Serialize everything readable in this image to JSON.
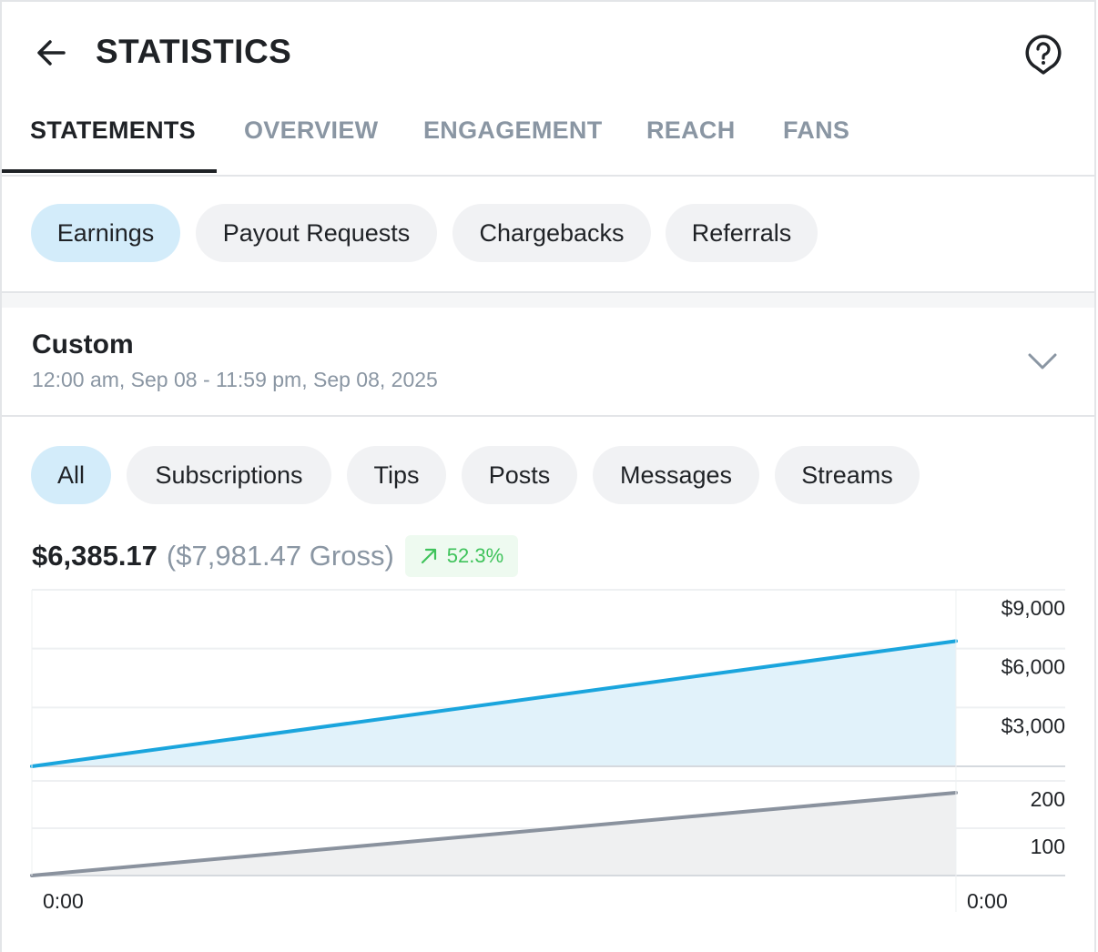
{
  "header": {
    "title": "STATISTICS",
    "back_icon": "arrow-left-icon",
    "help_icon": "help-bubble-icon"
  },
  "tabs": [
    {
      "label": "STATEMENTS",
      "active": true
    },
    {
      "label": "OVERVIEW"
    },
    {
      "label": "ENGAGEMENT"
    },
    {
      "label": "REACH"
    },
    {
      "label": "FANS"
    }
  ],
  "statement_types": [
    {
      "label": "Earnings",
      "active": true
    },
    {
      "label": "Payout Requests"
    },
    {
      "label": "Chargebacks"
    },
    {
      "label": "Referrals"
    }
  ],
  "range": {
    "title": "Custom",
    "subtitle": "12:00 am, Sep 08 - 11:59 pm, Sep 08, 2025"
  },
  "categories": [
    {
      "label": "All",
      "active": true
    },
    {
      "label": "Subscriptions"
    },
    {
      "label": "Tips"
    },
    {
      "label": "Posts"
    },
    {
      "label": "Messages"
    },
    {
      "label": "Streams"
    }
  ],
  "totals": {
    "net": "$6,385.17",
    "gross": "($7,981.47 Gross)",
    "change": "52.3%",
    "change_color": "#3fc35b"
  },
  "chart_data": [
    {
      "type": "area",
      "name": "earnings",
      "x": [
        "0:00",
        "0:00"
      ],
      "values": [
        0,
        6385.17
      ],
      "ylim": [
        0,
        9000
      ],
      "yticks": [
        "$9,000",
        "$6,000",
        "$3,000"
      ],
      "ytick_values": [
        9000,
        6000,
        3000
      ],
      "color": "#1aa5dd",
      "fill": "#e1f2fa",
      "grid": true
    },
    {
      "type": "area",
      "name": "count",
      "x": [
        "0:00",
        "0:00"
      ],
      "values": [
        0,
        175
      ],
      "ylim": [
        0,
        200
      ],
      "yticks": [
        "200",
        "100"
      ],
      "ytick_values": [
        200,
        100
      ],
      "color": "#8a929e",
      "fill": "#eff0f1",
      "grid": true
    }
  ],
  "x_labels": [
    "0:00",
    "0:00"
  ]
}
